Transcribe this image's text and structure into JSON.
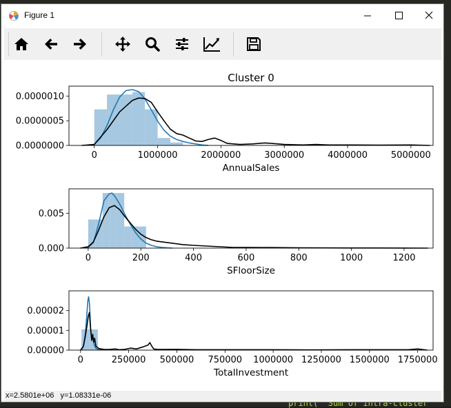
{
  "window": {
    "title": "Figure 1"
  },
  "toolbar": {
    "buttons": [
      {
        "id": "home",
        "icon": "home-icon"
      },
      {
        "id": "back",
        "icon": "arrow-left-icon"
      },
      {
        "id": "forward",
        "icon": "arrow-right-icon"
      },
      {
        "id": "pan",
        "icon": "move-icon"
      },
      {
        "id": "zoom",
        "icon": "magnifier-icon"
      },
      {
        "id": "subplots",
        "icon": "sliders-icon"
      },
      {
        "id": "edit",
        "icon": "line-chart-icon"
      },
      {
        "id": "save",
        "icon": "floppy-disk-icon"
      }
    ]
  },
  "status": {
    "coords": "x=2.5801e+06   y=1.08331e-06"
  },
  "background": {
    "code_snippet": "print( \"Sum of intra-cluster"
  },
  "colors": {
    "kde_blue": "#1f77b4",
    "kde_black": "#000000",
    "hist_fill": "#a6c8e0",
    "editor_bg": "#272822"
  },
  "chart_data": [
    {
      "type": "bar",
      "title": "Cluster 0",
      "xlabel": "AnnualSales",
      "xlim": [
        -400000,
        5350000
      ],
      "ylim": [
        0,
        1.2e-06
      ],
      "xticks": [
        "0",
        "1000000",
        "2000000",
        "3000000",
        "4000000",
        "5000000"
      ],
      "xtick_values": [
        0,
        1000000,
        2000000,
        3000000,
        4000000,
        5000000
      ],
      "yticks": [
        "0.0000000",
        "0.0000005",
        "0.0000010"
      ],
      "ytick_values": [
        0,
        5e-07,
        1e-06
      ],
      "hist": {
        "bins": [
          [
            0,
            200000
          ],
          [
            200000,
            400000
          ],
          [
            400000,
            600000
          ],
          [
            600000,
            800000
          ],
          [
            800000,
            1000000
          ],
          [
            1000000,
            1200000
          ],
          [
            1200000,
            1400000
          ]
        ],
        "heights": [
          7.3e-07,
          1.03e-06,
          1.03e-06,
          1.08e-06,
          7.3e-07,
          1.5e-07,
          6e-08
        ]
      },
      "series": [
        {
          "color": "#1f77b4",
          "x": [
            -50000,
            0,
            100000,
            200000,
            300000,
            400000,
            500000,
            600000,
            700000,
            800000,
            900000,
            1000000,
            1100000,
            1200000,
            1300000,
            1400000,
            1500000,
            1600000,
            1700000,
            1800000
          ],
          "y": [
            0,
            2e-08,
            1.5e-07,
            4e-07,
            7.2e-07,
            9.8e-07,
            1.11e-06,
            1.13e-06,
            1.09e-06,
            9.4e-07,
            7.2e-07,
            4.9e-07,
            3.1e-07,
            1.9e-07,
            1.2e-07,
            8e-08,
            5e-08,
            3e-08,
            1e-08,
            0
          ]
        },
        {
          "color": "#000000",
          "x": [
            -200000,
            0,
            200000,
            400000,
            600000,
            700000,
            800000,
            900000,
            1000000,
            1100000,
            1200000,
            1300000,
            1400000,
            1500000,
            1600000,
            1700000,
            1800000,
            1900000,
            2000000,
            2100000,
            2300000,
            2500000,
            2700000,
            2800000,
            3000000,
            3300000,
            3500000,
            3700000,
            4000000,
            4500000,
            5000000,
            5300000
          ],
          "y": [
            0,
            2e-08,
            3.2e-07,
            6.8e-07,
            9.1e-07,
            9.6e-07,
            9.5e-07,
            8.7e-07,
            6.8e-07,
            5e-07,
            3.3e-07,
            2.4e-07,
            2.1e-07,
            1.5e-07,
            9e-08,
            8e-08,
            1.2e-07,
            1.5e-07,
            1e-07,
            4e-08,
            2e-08,
            3e-08,
            5e-08,
            4e-08,
            2e-08,
            1e-08,
            2e-08,
            1e-08,
            1e-08,
            5e-09,
            1e-08,
            0
          ]
        }
      ]
    },
    {
      "type": "bar",
      "title": "",
      "xlabel": "SFloorSize",
      "xlim": [
        -73,
        1310
      ],
      "ylim": [
        0,
        0.0085
      ],
      "xticks": [
        "0",
        "200",
        "400",
        "600",
        "800",
        "1000",
        "1200"
      ],
      "xtick_values": [
        0,
        200,
        400,
        600,
        800,
        1000,
        1200
      ],
      "yticks": [
        "0.000",
        "0.005"
      ],
      "ytick_values": [
        0,
        0.005
      ],
      "hist": {
        "bins": [
          [
            0,
            27
          ],
          [
            27,
            55
          ],
          [
            55,
            82
          ],
          [
            82,
            110
          ],
          [
            110,
            137
          ],
          [
            137,
            165
          ],
          [
            165,
            192
          ],
          [
            192,
            220
          ]
        ],
        "heights": [
          0.0041,
          0.0041,
          0.0079,
          0.0079,
          0.0079,
          0.0031,
          0.0031,
          0.0031
        ]
      },
      "series": [
        {
          "color": "#1f77b4",
          "x": [
            -10,
            0,
            20,
            40,
            60,
            80,
            90,
            100,
            120,
            140,
            160,
            180,
            200,
            220,
            240,
            260,
            280,
            300,
            320
          ],
          "y": [
            0,
            0.0001,
            0.0008,
            0.0035,
            0.0068,
            0.0078,
            0.0079,
            0.0075,
            0.0063,
            0.0048,
            0.0034,
            0.0022,
            0.0013,
            0.0007,
            0.0004,
            0.0002,
            0.0001,
            5e-05,
            0
          ]
        },
        {
          "color": "#000000",
          "x": [
            -30,
            0,
            20,
            40,
            60,
            80,
            100,
            120,
            140,
            160,
            180,
            200,
            220,
            240,
            260,
            280,
            300,
            320,
            340,
            360,
            400,
            450,
            500,
            550,
            600,
            700,
            800,
            900,
            1000,
            1100,
            1200,
            1290
          ],
          "y": [
            0,
            0.0002,
            0.0009,
            0.0026,
            0.0045,
            0.0058,
            0.0061,
            0.0055,
            0.0045,
            0.0036,
            0.0027,
            0.002,
            0.0015,
            0.0012,
            0.001,
            0.0009,
            0.0008,
            0.0007,
            0.0006,
            0.0005,
            0.0004,
            0.0003,
            0.0002,
            0.0001,
            0.0001,
            8e-05,
            5e-05,
            3e-05,
            2e-05,
            2e-05,
            1e-05,
            0
          ]
        }
      ]
    },
    {
      "type": "bar",
      "title": "",
      "xlabel": "TotalInvestment",
      "xlim": [
        -60000,
        1830000
      ],
      "ylim": [
        0,
        3e-05
      ],
      "xticks": [
        "0",
        "250000",
        "500000",
        "750000",
        "1000000",
        "1250000",
        "1500000",
        "1750000"
      ],
      "xtick_values": [
        0,
        250000,
        500000,
        750000,
        1000000,
        1250000,
        1500000,
        1750000
      ],
      "yticks": [
        "0.00000",
        "0.00001",
        "0.00002"
      ],
      "ytick_values": [
        0,
        1e-05,
        2e-05
      ],
      "hist": {
        "bins": [
          [
            5000,
            45000
          ],
          [
            45000,
            90000
          ]
        ],
        "heights": [
          1.05e-05,
          1.05e-05
        ]
      },
      "series": [
        {
          "color": "#1f77b4",
          "x": [
            5000,
            15000,
            25000,
            32000,
            38000,
            42000,
            47000,
            52000,
            58000,
            64000,
            70000,
            78000,
            90000,
            110000
          ],
          "y": [
            0,
            2e-06,
            8e-06,
            1.7e-05,
            2.5e-05,
            2.7e-05,
            2.3e-05,
            1.2e-05,
            5e-06,
            7e-06,
            3e-06,
            1e-06,
            3e-07,
            0
          ]
        },
        {
          "color": "#000000",
          "x": [
            0,
            15000,
            25000,
            33000,
            40000,
            46000,
            52000,
            58000,
            63000,
            68000,
            73000,
            80000,
            95000,
            120000,
            150000,
            180000,
            200000,
            230000,
            260000,
            290000,
            320000,
            350000,
            360000,
            370000,
            380000,
            400000,
            500000,
            600000,
            800000,
            1000000,
            1200000,
            1400000,
            1600000,
            1700000,
            1750000,
            1800000
          ],
          "y": [
            0,
            2e-06,
            7e-06,
            1.2e-05,
            1.7e-05,
            1.9e-05,
            1.1e-05,
            5e-06,
            8e-06,
            4e-06,
            6e-06,
            2e-06,
            8e-07,
            4e-07,
            3e-07,
            6e-07,
            2e-07,
            4e-07,
            1e-06,
            6e-07,
            1.5e-06,
            2.5e-06,
            3.8e-06,
            2e-06,
            6e-07,
            3e-07,
            4e-07,
            2e-07,
            2e-07,
            2e-07,
            1e-07,
            2e-07,
            2e-07,
            2e-07,
            6e-07,
            0
          ]
        }
      ]
    }
  ]
}
